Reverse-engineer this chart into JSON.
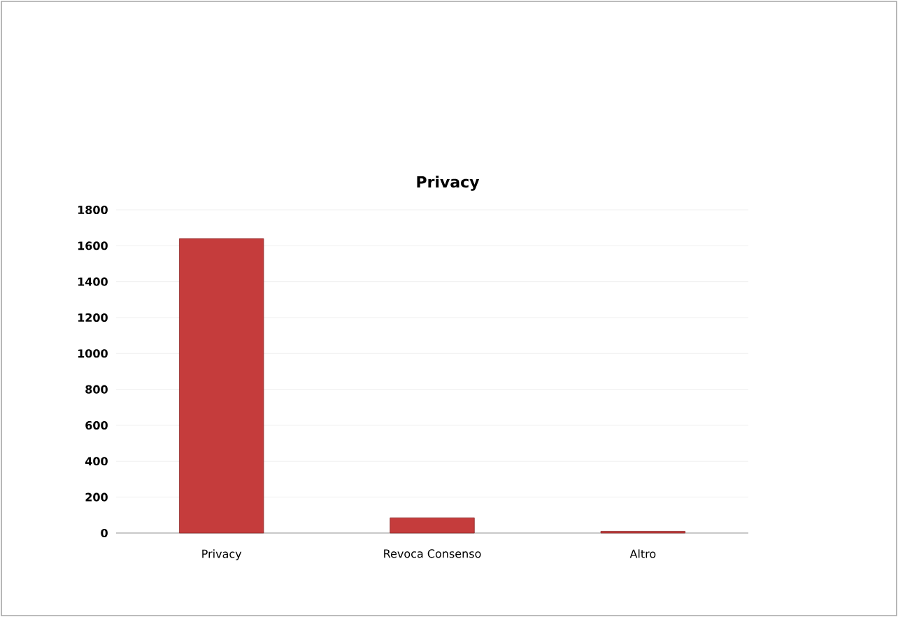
{
  "chart_data": {
    "type": "bar",
    "title": "Privacy",
    "categories": [
      "Privacy",
      "Revoca Consenso",
      "Altro"
    ],
    "values": [
      1640,
      85,
      10
    ],
    "color": "#c53c3c",
    "ylim": [
      0,
      1800
    ],
    "yticks": [
      0,
      200,
      400,
      600,
      800,
      1000,
      1200,
      1400,
      1600,
      1800
    ],
    "grid": "y"
  }
}
